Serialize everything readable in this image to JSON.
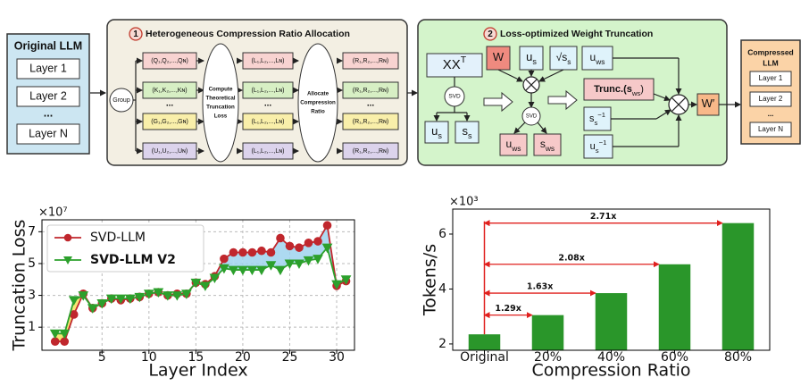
{
  "diagram": {
    "original_llm": {
      "title": "Original LLM",
      "layers": [
        "Layer 1",
        "Layer 2",
        "...",
        "Layer N"
      ]
    },
    "stage_1": {
      "number": "1",
      "title": "Heterogeneous Compression Ratio Allocation",
      "group": "Group",
      "weights": [
        "(Q₁,Q₂,...,Qɴ)",
        "(K₁,K₂,...,Kɴ)",
        "...",
        "(G₁,G₂,...,Gɴ)",
        "(U₁,U₂,...,Uɴ)"
      ],
      "loss_step": [
        "Compute",
        "Theoretical",
        "Truncation",
        "Loss"
      ],
      "losses": [
        "(L₁,L₂,...,Lɴ)",
        "(L₁,L₂,...,Lɴ)",
        "...",
        "(L₁,L₂,...,Lɴ)",
        "(L₁,L₂,...,Lɴ)"
      ],
      "ratio_step": [
        "Allocate",
        "Compression",
        "Ratio"
      ],
      "ratios": [
        "(R₁,R₂,...,Rɴ)",
        "(R₁,R₂,...,Rɴ)",
        "...",
        "(R₁,R₂,...,Rɴ)",
        "(R₁,R₂,...,Rɴ)"
      ]
    },
    "stage_2": {
      "number": "2",
      "title": "Loss-optimized Weight Truncation",
      "xxt": {
        "base": "XX",
        "sup": "T"
      },
      "svd_1": "SVD",
      "us_1": {
        "base": "u",
        "sub": "s"
      },
      "ss_1": {
        "base": "s",
        "sub": "s"
      },
      "w": {
        "base": "W"
      },
      "us_2": {
        "base": "u",
        "sub": "s"
      },
      "sqrt_ss": {
        "base": "√s",
        "sub": "s"
      },
      "svd_2": "SVD",
      "uws_1": {
        "base": "u",
        "sub": "ws"
      },
      "sws": {
        "base": "s",
        "sub": "ws"
      },
      "uws_2": {
        "base": "u",
        "sub": "ws"
      },
      "trunc": {
        "base": "Trunc.(s",
        "sub": "ws",
        "tail": ")"
      },
      "ss_inv": {
        "base": "s",
        "sub": "s",
        "sup": "−1"
      },
      "us_inv": {
        "base": "u",
        "sub": "s",
        "sup": "−1"
      },
      "w_prime": {
        "base": "W′"
      }
    },
    "compressed_llm": {
      "title": [
        "Compressed",
        "LLM"
      ],
      "layers": [
        "Layer 1",
        "Layer 2",
        "...",
        "Layer N"
      ]
    }
  },
  "chart_data": [
    {
      "type": "line",
      "y_multiplier": "×10⁷",
      "xlabel": "Layer Index",
      "ylabel": "Truncation Loss",
      "x": [
        0,
        1,
        2,
        3,
        4,
        5,
        6,
        7,
        8,
        9,
        10,
        11,
        12,
        13,
        14,
        15,
        16,
        17,
        18,
        19,
        20,
        21,
        22,
        23,
        24,
        25,
        26,
        27,
        28,
        29,
        30,
        31
      ],
      "series": [
        {
          "name": "SVD-LLM",
          "color": "#c0272d",
          "marker": "o",
          "values": [
            0.1,
            0.1,
            1.8,
            3.1,
            2.2,
            2.5,
            2.8,
            2.7,
            2.8,
            2.9,
            3.1,
            3.2,
            3.0,
            3.1,
            3.1,
            3.8,
            3.7,
            4.2,
            5.3,
            5.7,
            5.7,
            5.7,
            5.8,
            5.7,
            6.6,
            6.1,
            6.0,
            6.3,
            6.4,
            7.4,
            3.6,
            3.9
          ]
        },
        {
          "name": "SVD-LLM V2",
          "color": "#2ca02c",
          "marker": "v",
          "values": [
            0.6,
            0.6,
            2.7,
            3.0,
            2.2,
            2.5,
            2.8,
            2.8,
            2.8,
            2.9,
            3.1,
            3.2,
            3.0,
            3.0,
            3.1,
            3.8,
            3.6,
            4.1,
            4.7,
            4.6,
            4.6,
            4.6,
            4.6,
            4.9,
            4.6,
            5.0,
            5.0,
            5.2,
            5.3,
            6.0,
            3.7,
            4.0
          ]
        }
      ],
      "fill_between": {
        "above": "#9fd3ee",
        "below": "#f3e35a"
      },
      "xlim": [
        -1.4,
        31.9
      ],
      "xticks": [
        5,
        10,
        15,
        20,
        25,
        30
      ],
      "ylim": [
        -0.45,
        7.75
      ],
      "yticks": [
        1,
        3,
        5,
        7
      ],
      "grid": true,
      "legend": "upper-left"
    },
    {
      "type": "bar",
      "y_multiplier": "×10³",
      "xlabel": "Compression Ratio",
      "ylabel": "Tokens/s",
      "categories": [
        "Original",
        "20%",
        "40%",
        "60%",
        "80%"
      ],
      "values": [
        2.35,
        3.05,
        3.85,
        4.9,
        6.4
      ],
      "color": "#2a962a",
      "annotations": [
        "1.29x",
        "1.63x",
        "2.08x",
        "2.71x"
      ],
      "annotation_color": "#e0201e",
      "ylim": [
        1.77,
        6.91
      ],
      "yticks": [
        2,
        4,
        6
      ],
      "grid": false
    }
  ]
}
